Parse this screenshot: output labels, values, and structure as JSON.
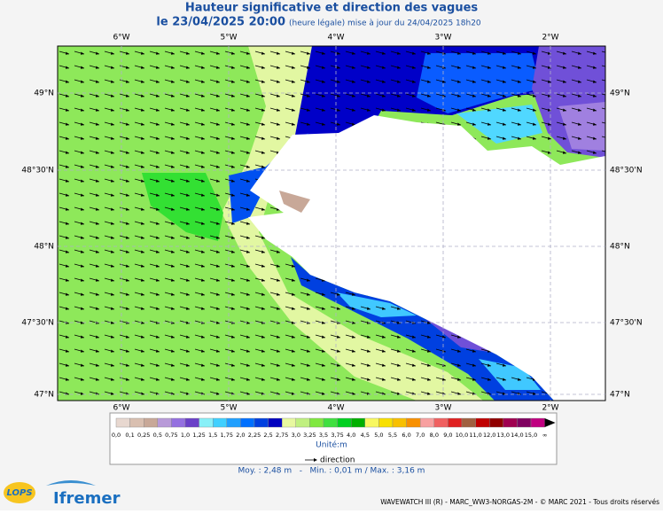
{
  "header": {
    "title": "Hauteur significative et direction des vagues",
    "date": "le 23/04/2025 20:00",
    "update": "(heure légale) mise à jour du 24/04/2025 18h20"
  },
  "longitude_labels": [
    "6°W",
    "5°W",
    "4°W",
    "3°W",
    "2°W"
  ],
  "latitude_labels": [
    "49°N",
    "48°30'N",
    "48°N",
    "47°30'N",
    "47°N"
  ],
  "colorbar": {
    "labels": [
      "0,0",
      "0,1",
      "0,25",
      "0,5",
      "0,75",
      "1,0",
      "1,25",
      "1,5",
      "1,75",
      "2,0",
      "2,25",
      "2,5",
      "2,75",
      "3,0",
      "3,25",
      "3,5",
      "3,75",
      "4,0",
      "4,5",
      "5,0",
      "5,5",
      "6,0",
      "7,0",
      "8,0",
      "9,0",
      "10,0",
      "11,0",
      "12,0",
      "13,0",
      "14,0",
      "15,0",
      "∞"
    ],
    "colors": [
      "#e8d8d0",
      "#d9bfb0",
      "#c8a898",
      "#b89ad8",
      "#9470e0",
      "#6a40c8",
      "#88f0f8",
      "#40d0ff",
      "#20a0ff",
      "#0070ff",
      "#0040e0",
      "#0000c0",
      "#e8f8a0",
      "#c0f080",
      "#80e840",
      "#40e040",
      "#00d020",
      "#00b000",
      "#f8f860",
      "#f8e000",
      "#f8c000",
      "#f89000",
      "#f8a0a0",
      "#f06060",
      "#e02020",
      "#a06040",
      "#c00000",
      "#900000",
      "#a00050",
      "#800060",
      "#c00080"
    ],
    "unit": "Unité:m"
  },
  "legend": {
    "direction": "direction"
  },
  "stats": "Moy. : 2,48 m   -   Min. : 0,01 m / Max. : 3,16 m",
  "footer": "WAVEWATCH III (R) - MARC_WW3-NORGAS-2M - © MARC 2021 - Tous droits réservés",
  "logos": {
    "lops": "LOPS",
    "ifremer": "Ifremer"
  }
}
